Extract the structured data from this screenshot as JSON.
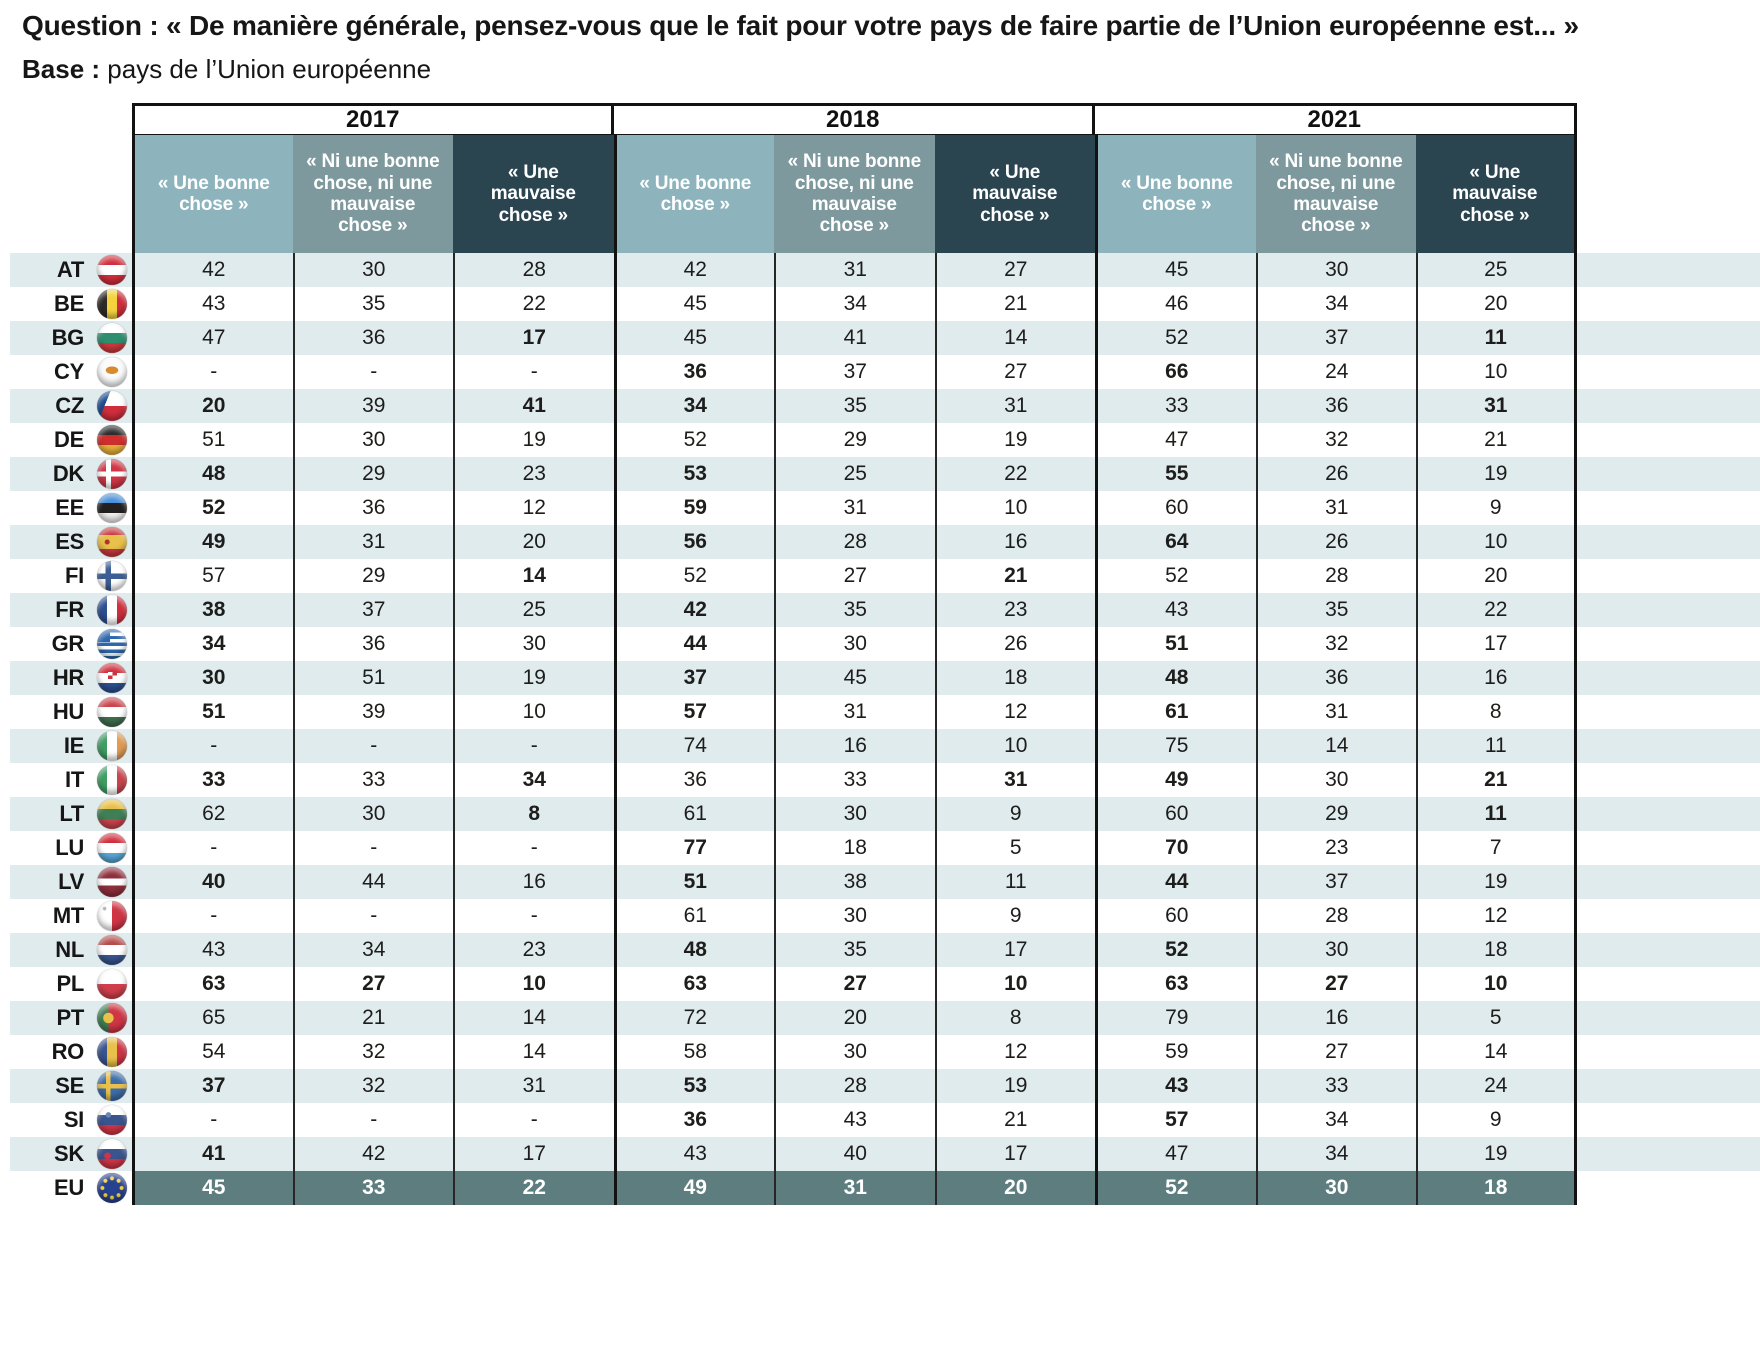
{
  "header": {
    "question_label": "Question :",
    "question_text": "« De manière générale, pensez-vous que le fait pour votre pays de faire partie de l’Union européenne est... »",
    "base_label": "Base :",
    "base_text": "pays  de l’Union européenne"
  },
  "colors": {
    "header_good": "#8db4bc",
    "header_neutral": "#7e999d",
    "header_bad": "#2a4450",
    "eu_row": "#5e7d7f",
    "row_alt": "#e0ebee",
    "text": "#1d1d1b",
    "border": "#121212"
  },
  "chart_data": {
    "type": "table",
    "title": "Question : « De manière générale, pensez-vous que le fait pour votre pays de faire partie de l’Union européenne est... »",
    "subtitle": "Base : pays de l’Union européenne",
    "years": [
      "2017",
      "2018",
      "2021"
    ],
    "column_headers": [
      "« Une bonne chose »",
      "« Ni une bonne chose, ni une mauvaise chose »",
      "« Une mauvaise chose »"
    ],
    "missing_marker": "-",
    "rows": [
      {
        "code": "AT",
        "values": [
          [
            "42",
            "30",
            "28"
          ],
          [
            "42",
            "31",
            "27"
          ],
          [
            "45",
            "30",
            "25"
          ]
        ],
        "bold": [
          [
            0,
            0,
            0
          ],
          [
            0,
            0,
            0
          ],
          [
            0,
            0,
            0
          ]
        ]
      },
      {
        "code": "BE",
        "values": [
          [
            "43",
            "35",
            "22"
          ],
          [
            "45",
            "34",
            "21"
          ],
          [
            "46",
            "34",
            "20"
          ]
        ],
        "bold": [
          [
            0,
            0,
            0
          ],
          [
            0,
            0,
            0
          ],
          [
            0,
            0,
            0
          ]
        ]
      },
      {
        "code": "BG",
        "values": [
          [
            "47",
            "36",
            "17"
          ],
          [
            "45",
            "41",
            "14"
          ],
          [
            "52",
            "37",
            "11"
          ]
        ],
        "bold": [
          [
            0,
            0,
            1
          ],
          [
            0,
            0,
            0
          ],
          [
            0,
            0,
            1
          ]
        ]
      },
      {
        "code": "CY",
        "values": [
          [
            "-",
            "-",
            "-"
          ],
          [
            "36",
            "37",
            "27"
          ],
          [
            "66",
            "24",
            "10"
          ]
        ],
        "bold": [
          [
            0,
            0,
            0
          ],
          [
            1,
            0,
            0
          ],
          [
            1,
            0,
            0
          ]
        ]
      },
      {
        "code": "CZ",
        "values": [
          [
            "20",
            "39",
            "41"
          ],
          [
            "34",
            "35",
            "31"
          ],
          [
            "33",
            "36",
            "31"
          ]
        ],
        "bold": [
          [
            1,
            0,
            1
          ],
          [
            1,
            0,
            0
          ],
          [
            0,
            0,
            1
          ]
        ]
      },
      {
        "code": "DE",
        "values": [
          [
            "51",
            "30",
            "19"
          ],
          [
            "52",
            "29",
            "19"
          ],
          [
            "47",
            "32",
            "21"
          ]
        ],
        "bold": [
          [
            0,
            0,
            0
          ],
          [
            0,
            0,
            0
          ],
          [
            0,
            0,
            0
          ]
        ]
      },
      {
        "code": "DK",
        "values": [
          [
            "48",
            "29",
            "23"
          ],
          [
            "53",
            "25",
            "22"
          ],
          [
            "55",
            "26",
            "19"
          ]
        ],
        "bold": [
          [
            1,
            0,
            0
          ],
          [
            1,
            0,
            0
          ],
          [
            1,
            0,
            0
          ]
        ]
      },
      {
        "code": "EE",
        "values": [
          [
            "52",
            "36",
            "12"
          ],
          [
            "59",
            "31",
            "10"
          ],
          [
            "60",
            "31",
            "9"
          ]
        ],
        "bold": [
          [
            1,
            0,
            0
          ],
          [
            1,
            0,
            0
          ],
          [
            0,
            0,
            0
          ]
        ]
      },
      {
        "code": "ES",
        "values": [
          [
            "49",
            "31",
            "20"
          ],
          [
            "56",
            "28",
            "16"
          ],
          [
            "64",
            "26",
            "10"
          ]
        ],
        "bold": [
          [
            1,
            0,
            0
          ],
          [
            1,
            0,
            0
          ],
          [
            1,
            0,
            0
          ]
        ]
      },
      {
        "code": "FI",
        "values": [
          [
            "57",
            "29",
            "14"
          ],
          [
            "52",
            "27",
            "21"
          ],
          [
            "52",
            "28",
            "20"
          ]
        ],
        "bold": [
          [
            0,
            0,
            1
          ],
          [
            0,
            0,
            1
          ],
          [
            0,
            0,
            0
          ]
        ]
      },
      {
        "code": "FR",
        "values": [
          [
            "38",
            "37",
            "25"
          ],
          [
            "42",
            "35",
            "23"
          ],
          [
            "43",
            "35",
            "22"
          ]
        ],
        "bold": [
          [
            1,
            0,
            0
          ],
          [
            1,
            0,
            0
          ],
          [
            0,
            0,
            0
          ]
        ]
      },
      {
        "code": "GR",
        "values": [
          [
            "34",
            "36",
            "30"
          ],
          [
            "44",
            "30",
            "26"
          ],
          [
            "51",
            "32",
            "17"
          ]
        ],
        "bold": [
          [
            1,
            0,
            0
          ],
          [
            1,
            0,
            0
          ],
          [
            1,
            0,
            0
          ]
        ]
      },
      {
        "code": "HR",
        "values": [
          [
            "30",
            "51",
            "19"
          ],
          [
            "37",
            "45",
            "18"
          ],
          [
            "48",
            "36",
            "16"
          ]
        ],
        "bold": [
          [
            1,
            0,
            0
          ],
          [
            1,
            0,
            0
          ],
          [
            1,
            0,
            0
          ]
        ]
      },
      {
        "code": "HU",
        "values": [
          [
            "51",
            "39",
            "10"
          ],
          [
            "57",
            "31",
            "12"
          ],
          [
            "61",
            "31",
            "8"
          ]
        ],
        "bold": [
          [
            1,
            0,
            0
          ],
          [
            1,
            0,
            0
          ],
          [
            1,
            0,
            0
          ]
        ]
      },
      {
        "code": "IE",
        "values": [
          [
            "-",
            "-",
            "-"
          ],
          [
            "74",
            "16",
            "10"
          ],
          [
            "75",
            "14",
            "11"
          ]
        ],
        "bold": [
          [
            0,
            0,
            0
          ],
          [
            0,
            0,
            0
          ],
          [
            0,
            0,
            0
          ]
        ]
      },
      {
        "code": "IT",
        "values": [
          [
            "33",
            "33",
            "34"
          ],
          [
            "36",
            "33",
            "31"
          ],
          [
            "49",
            "30",
            "21"
          ]
        ],
        "bold": [
          [
            1,
            0,
            1
          ],
          [
            0,
            0,
            1
          ],
          [
            1,
            0,
            1
          ]
        ]
      },
      {
        "code": "LT",
        "values": [
          [
            "62",
            "30",
            "8"
          ],
          [
            "61",
            "30",
            "9"
          ],
          [
            "60",
            "29",
            "11"
          ]
        ],
        "bold": [
          [
            0,
            0,
            1
          ],
          [
            0,
            0,
            0
          ],
          [
            0,
            0,
            1
          ]
        ]
      },
      {
        "code": "LU",
        "values": [
          [
            "-",
            "-",
            "-"
          ],
          [
            "77",
            "18",
            "5"
          ],
          [
            "70",
            "23",
            "7"
          ]
        ],
        "bold": [
          [
            0,
            0,
            0
          ],
          [
            1,
            0,
            0
          ],
          [
            1,
            0,
            0
          ]
        ]
      },
      {
        "code": "LV",
        "values": [
          [
            "40",
            "44",
            "16"
          ],
          [
            "51",
            "38",
            "11"
          ],
          [
            "44",
            "37",
            "19"
          ]
        ],
        "bold": [
          [
            1,
            0,
            0
          ],
          [
            1,
            0,
            0
          ],
          [
            1,
            0,
            0
          ]
        ]
      },
      {
        "code": "MT",
        "values": [
          [
            "-",
            "-",
            "-"
          ],
          [
            "61",
            "30",
            "9"
          ],
          [
            "60",
            "28",
            "12"
          ]
        ],
        "bold": [
          [
            0,
            0,
            0
          ],
          [
            0,
            0,
            0
          ],
          [
            0,
            0,
            0
          ]
        ]
      },
      {
        "code": "NL",
        "values": [
          [
            "43",
            "34",
            "23"
          ],
          [
            "48",
            "35",
            "17"
          ],
          [
            "52",
            "30",
            "18"
          ]
        ],
        "bold": [
          [
            0,
            0,
            0
          ],
          [
            1,
            0,
            0
          ],
          [
            1,
            0,
            0
          ]
        ]
      },
      {
        "code": "PL",
        "values": [
          [
            "63",
            "27",
            "10"
          ],
          [
            "63",
            "27",
            "10"
          ],
          [
            "63",
            "27",
            "10"
          ]
        ],
        "bold": [
          [
            1,
            1,
            1
          ],
          [
            1,
            1,
            1
          ],
          [
            1,
            1,
            1
          ]
        ]
      },
      {
        "code": "PT",
        "values": [
          [
            "65",
            "21",
            "14"
          ],
          [
            "72",
            "20",
            "8"
          ],
          [
            "79",
            "16",
            "5"
          ]
        ],
        "bold": [
          [
            0,
            0,
            0
          ],
          [
            0,
            0,
            0
          ],
          [
            0,
            0,
            0
          ]
        ]
      },
      {
        "code": "RO",
        "values": [
          [
            "54",
            "32",
            "14"
          ],
          [
            "58",
            "30",
            "12"
          ],
          [
            "59",
            "27",
            "14"
          ]
        ],
        "bold": [
          [
            0,
            0,
            0
          ],
          [
            0,
            0,
            0
          ],
          [
            0,
            0,
            0
          ]
        ]
      },
      {
        "code": "SE",
        "values": [
          [
            "37",
            "32",
            "31"
          ],
          [
            "53",
            "28",
            "19"
          ],
          [
            "43",
            "33",
            "24"
          ]
        ],
        "bold": [
          [
            1,
            0,
            0
          ],
          [
            1,
            0,
            0
          ],
          [
            1,
            0,
            0
          ]
        ]
      },
      {
        "code": "SI",
        "values": [
          [
            "-",
            "-",
            "-"
          ],
          [
            "36",
            "43",
            "21"
          ],
          [
            "57",
            "34",
            "9"
          ]
        ],
        "bold": [
          [
            0,
            0,
            0
          ],
          [
            1,
            0,
            0
          ],
          [
            1,
            0,
            0
          ]
        ]
      },
      {
        "code": "SK",
        "values": [
          [
            "41",
            "42",
            "17"
          ],
          [
            "43",
            "40",
            "17"
          ],
          [
            "47",
            "34",
            "19"
          ]
        ],
        "bold": [
          [
            1,
            0,
            0
          ],
          [
            0,
            0,
            0
          ],
          [
            0,
            0,
            0
          ]
        ]
      },
      {
        "code": "EU",
        "values": [
          [
            "45",
            "33",
            "22"
          ],
          [
            "49",
            "31",
            "20"
          ],
          [
            "52",
            "30",
            "18"
          ]
        ],
        "bold": [
          [
            1,
            1,
            1
          ],
          [
            1,
            1,
            1
          ],
          [
            1,
            1,
            1
          ]
        ]
      }
    ]
  }
}
